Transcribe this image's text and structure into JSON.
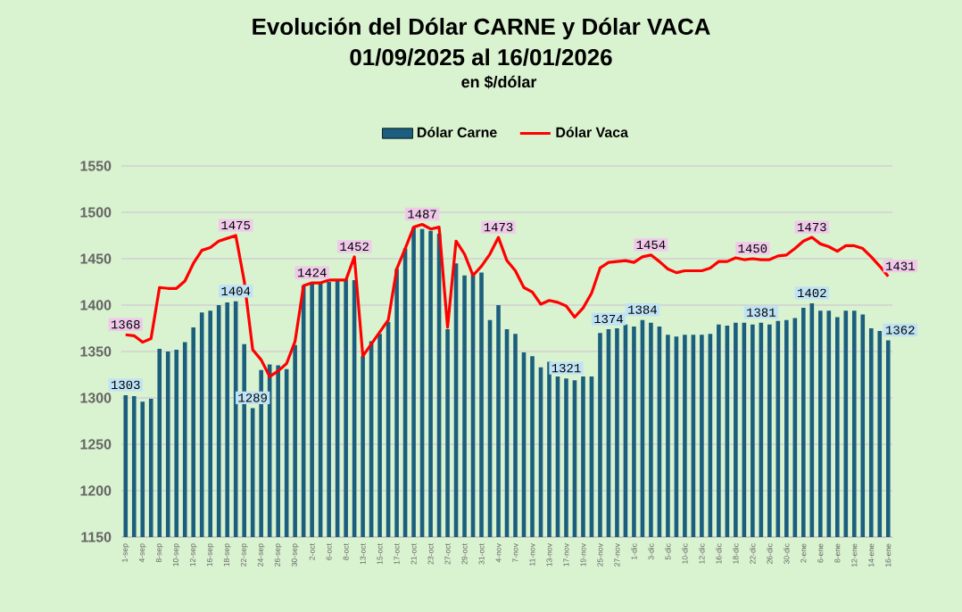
{
  "chart_data": {
    "type": "bar",
    "title": "Evolución  del Dólar CARNE  y Dólar VACA",
    "subtitle": "01/09/2025 al 16/01/2026",
    "annotations": [
      "en $/dólar"
    ],
    "categories": [
      "1-sep",
      null,
      "4-sep",
      null,
      "8-sep",
      null,
      "10-sep",
      null,
      "12-sep",
      null,
      "16-sep",
      null,
      "18-sep",
      null,
      "22-sep",
      null,
      "24-sep",
      null,
      "26-sep",
      null,
      "30-sep",
      null,
      "2-oct",
      null,
      "6-oct",
      null,
      "8-oct",
      null,
      "13-oct",
      null,
      "15-oct",
      null,
      "17-oct",
      null,
      "21-oct",
      null,
      "23-oct",
      null,
      "27-oct",
      null,
      "29-oct",
      null,
      "31-oct",
      null,
      "4-nov",
      null,
      "7-nov",
      null,
      "11-nov",
      null,
      "13-nov",
      null,
      "17-nov",
      null,
      "19-nov",
      null,
      "25-nov",
      null,
      "27-nov",
      null,
      "1-dic",
      null,
      "3-dic",
      null,
      "5-dic",
      null,
      "10-dic",
      null,
      "12-dic",
      null,
      "16-dic",
      null,
      "18-dic",
      null,
      "22-dic",
      null,
      "26-dic",
      null,
      "30-dic",
      null,
      "2-ene",
      null,
      "6-ene",
      null,
      "8-ene",
      null,
      "12-ene",
      null,
      "14-ene",
      null,
      "16-ene"
    ],
    "series": [
      {
        "name": "Dólar Carne",
        "type": "bar",
        "color": "#1b5e7e",
        "values": [
          1303,
          1302,
          1296,
          1299,
          1353,
          1350,
          1352,
          1360,
          1376,
          1392,
          1394,
          1400,
          1403,
          1404,
          1358,
          1289,
          1330,
          1336,
          1335,
          1331,
          1357,
          1421,
          1424,
          1424,
          1425,
          1428,
          1428,
          1427,
          1345,
          1361,
          1369,
          1382,
          1439,
          1461,
          1484,
          1482,
          1480,
          1477,
          1374,
          1445,
          1432,
          1435,
          1435,
          1384,
          1400,
          1374,
          1369,
          1349,
          1345,
          1333,
          1339,
          1323,
          1321,
          1319,
          1323,
          1323,
          1370,
          1374,
          1375,
          1379,
          1377,
          1384,
          1381,
          1377,
          1368,
          1366,
          1368,
          1368,
          1368,
          1369,
          1379,
          1378,
          1381,
          1381,
          1379,
          1381,
          1379,
          1383,
          1384,
          1386,
          1397,
          1402,
          1394,
          1394,
          1387,
          1394,
          1394,
          1390,
          1375,
          1372,
          1362
        ],
        "value_labels": [
          "1303",
          null,
          null,
          null,
          null,
          null,
          null,
          null,
          null,
          null,
          null,
          null,
          null,
          "1404",
          null,
          "1289",
          null,
          null,
          null,
          null,
          null,
          null,
          null,
          null,
          null,
          null,
          null,
          null,
          null,
          null,
          null,
          null,
          null,
          null,
          null,
          null,
          null,
          null,
          null,
          null,
          null,
          null,
          null,
          null,
          null,
          null,
          null,
          null,
          null,
          null,
          null,
          null,
          "1321",
          null,
          null,
          null,
          null,
          "1374",
          null,
          null,
          null,
          "1384",
          null,
          null,
          null,
          null,
          null,
          null,
          null,
          null,
          null,
          null,
          null,
          null,
          null,
          "1381",
          null,
          null,
          null,
          null,
          null,
          "1402",
          null,
          null,
          null,
          null,
          null,
          null,
          null,
          null,
          "1362"
        ]
      },
      {
        "name": "Dólar  Vaca",
        "type": "line",
        "color": "#ff0000",
        "values": [
          1368,
          1367,
          1360,
          1364,
          1419,
          1418,
          1418,
          1426,
          1445,
          1459,
          1462,
          1469,
          1472,
          1475,
          1426,
          1352,
          1341,
          1323,
          1329,
          1337,
          1361,
          1421,
          1424,
          1424,
          1427,
          1427,
          1427,
          1452,
          1345,
          1358,
          1371,
          1384,
          1439,
          1461,
          1484,
          1487,
          1482,
          1484,
          1376,
          1469,
          1455,
          1432,
          1442,
          1455,
          1473,
          1448,
          1437,
          1419,
          1414,
          1401,
          1405,
          1403,
          1399,
          1387,
          1397,
          1413,
          1440,
          1446,
          1447,
          1448,
          1446,
          1452,
          1454,
          1447,
          1439,
          1435,
          1437,
          1437,
          1437,
          1440,
          1447,
          1447,
          1451,
          1449,
          1450,
          1449,
          1449,
          1453,
          1454,
          1461,
          1469,
          1473,
          1466,
          1463,
          1458,
          1464,
          1464,
          1461,
          1452,
          1442,
          1431
        ],
        "value_labels": [
          "1368",
          null,
          null,
          null,
          null,
          null,
          null,
          null,
          null,
          null,
          null,
          null,
          null,
          "1475",
          null,
          null,
          null,
          null,
          null,
          null,
          null,
          null,
          "1424",
          null,
          null,
          null,
          null,
          "1452",
          null,
          null,
          null,
          null,
          null,
          null,
          null,
          "1487",
          null,
          null,
          null,
          null,
          null,
          null,
          null,
          null,
          "1473",
          null,
          null,
          null,
          null,
          null,
          null,
          null,
          null,
          null,
          null,
          null,
          null,
          null,
          null,
          null,
          null,
          null,
          "1454",
          null,
          null,
          null,
          null,
          null,
          null,
          null,
          null,
          null,
          null,
          null,
          "1450",
          null,
          null,
          null,
          null,
          null,
          null,
          "1473",
          null,
          null,
          null,
          null,
          null,
          null,
          null,
          null,
          "1431"
        ]
      }
    ],
    "ylim": [
      1150,
      1550
    ],
    "yticks": [
      1150,
      1200,
      1250,
      1300,
      1350,
      1400,
      1450,
      1500,
      1550
    ],
    "grid": "y",
    "legend": "top"
  }
}
